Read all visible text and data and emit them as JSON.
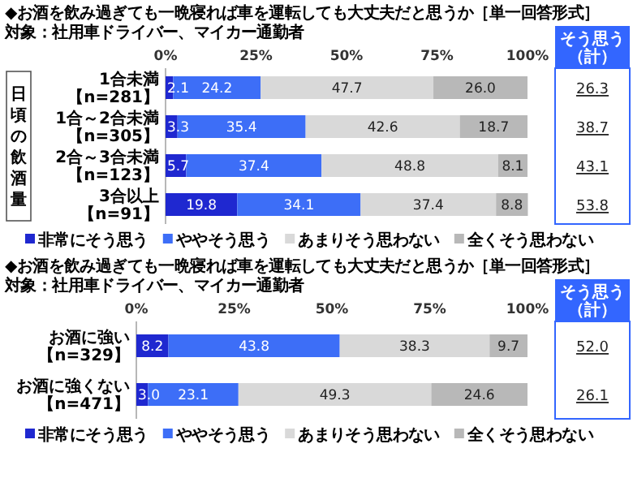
{
  "chart_data": [
    {
      "type": "bar",
      "orientation": "horizontal",
      "stacked": true,
      "title": "◆お酒を飲み過ぎても一晩寝れば車を運転しても大丈夫だと思うか［単一回答形式］",
      "subtitle": "対象：社用車ドライバー、マイカー通勤者",
      "ylabel": "日頃の飲酒量",
      "categories": [
        "1合未満【n=281】",
        "1合～2合未満【n=305】",
        "2合～3合未満【n=123】",
        "3合以上【n=91】"
      ],
      "series": [
        {
          "name": "非常にそう思う",
          "color": "#1f28d0",
          "values": [
            2.1,
            3.3,
            5.7,
            19.8
          ],
          "value_labels": [
            "2.1",
            "3.3",
            "5.7",
            "19.8"
          ]
        },
        {
          "name": "ややそう思う",
          "color": "#3d6ef7",
          "values": [
            24.2,
            35.4,
            37.4,
            34.1
          ],
          "value_labels": [
            "24.2",
            "35.4",
            "37.4",
            "34.1"
          ]
        },
        {
          "name": "あまりそう思わない",
          "color": "#d9d9d9",
          "values": [
            47.7,
            42.6,
            48.8,
            37.4
          ],
          "value_labels": [
            "47.7",
            "42.6",
            "48.8",
            "37.4"
          ]
        },
        {
          "name": "全くそう思わない",
          "color": "#b8b8b8",
          "values": [
            26.0,
            18.7,
            8.1,
            8.8
          ],
          "value_labels": [
            "26.0",
            "18.7",
            "8.1",
            "8.8"
          ]
        }
      ],
      "xlim": [
        0,
        100
      ],
      "xticks": [
        {
          "value": 0,
          "label": "0%"
        },
        {
          "value": 25,
          "label": "25%"
        },
        {
          "value": 50,
          "label": "50%"
        },
        {
          "value": 75,
          "label": "75%"
        },
        {
          "value": 100,
          "label": "100%"
        }
      ],
      "annotations": [
        "そう思う（計）",
        "26.3",
        "38.7",
        "43.1",
        "53.8"
      ],
      "legend": "bottom"
    },
    {
      "type": "bar",
      "orientation": "horizontal",
      "stacked": true,
      "title": "◆お酒を飲み過ぎても一晩寝れば車を運転しても大丈夫だと思うか［単一回答形式］",
      "subtitle": "対象：社用車ドライバー、マイカー通勤者",
      "categories": [
        "お酒に強い【n=329】",
        "お酒に強くない【n=471】"
      ],
      "series": [
        {
          "name": "非常にそう思う",
          "color": "#1f28d0",
          "values": [
            8.2,
            3.0
          ],
          "value_labels": [
            "8.2",
            "3.0"
          ]
        },
        {
          "name": "ややそう思う",
          "color": "#3d6ef7",
          "values": [
            43.8,
            23.1
          ],
          "value_labels": [
            "43.8",
            "23.1"
          ]
        },
        {
          "name": "あまりそう思わない",
          "color": "#d9d9d9",
          "values": [
            38.3,
            49.3
          ],
          "value_labels": [
            "38.3",
            "49.3"
          ]
        },
        {
          "name": "全くそう思わない",
          "color": "#b8b8b8",
          "values": [
            9.7,
            24.6
          ],
          "value_labels": [
            "9.7",
            "24.6"
          ]
        }
      ],
      "xlim": [
        0,
        100
      ],
      "xticks": [
        {
          "value": 0,
          "label": "0%"
        },
        {
          "value": 25,
          "label": "25%"
        },
        {
          "value": 50,
          "label": "50%"
        },
        {
          "value": 75,
          "label": "75%"
        },
        {
          "value": 100,
          "label": "100%"
        }
      ],
      "annotations": [
        "そう思う（計）",
        "52.0",
        "26.1"
      ],
      "legend": "bottom"
    }
  ]
}
